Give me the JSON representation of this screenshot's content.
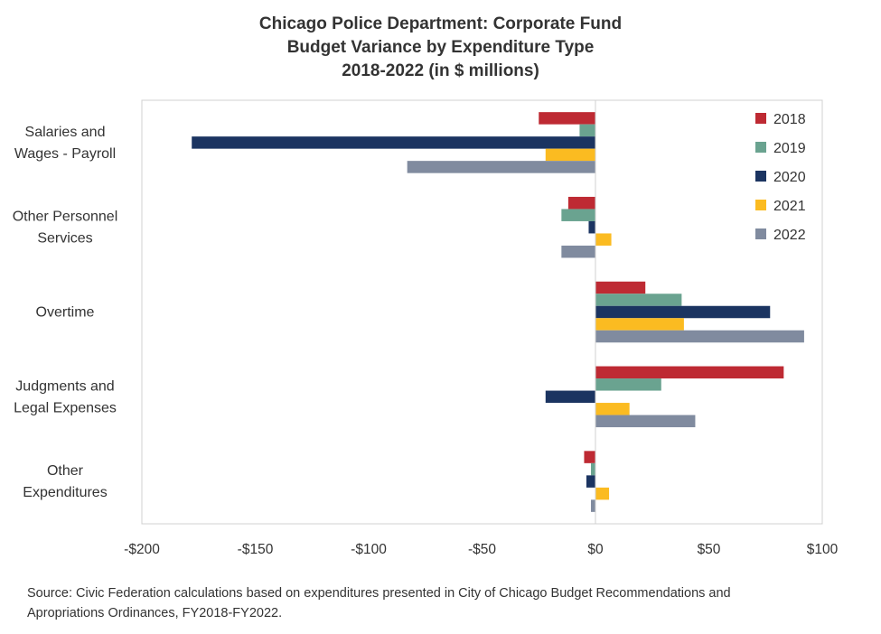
{
  "chart_data": {
    "type": "bar",
    "orientation": "horizontal",
    "title_lines": [
      "Chicago Police Department: Corporate Fund",
      "Budget Variance by Expenditure Type",
      "2018-2022 (in $ millions)"
    ],
    "categories": [
      [
        "Salaries and",
        "Wages - Payroll"
      ],
      [
        "Other Personnel",
        "Services"
      ],
      [
        "Overtime"
      ],
      [
        "Judgments and",
        "Legal Expenses"
      ],
      [
        "Other",
        "Expenditures"
      ]
    ],
    "series": [
      {
        "name": "2018",
        "color": "#be2a33",
        "values": [
          -25,
          -12,
          22,
          83,
          -5
        ]
      },
      {
        "name": "2019",
        "color": "#6aa390",
        "values": [
          -7,
          -15,
          38,
          29,
          -2
        ]
      },
      {
        "name": "2020",
        "color": "#1b3461",
        "values": [
          -178,
          -3,
          77,
          -22,
          -4
        ]
      },
      {
        "name": "2021",
        "color": "#fbbb21",
        "values": [
          -22,
          7,
          39,
          15,
          6
        ]
      },
      {
        "name": "2022",
        "color": "#808b9f",
        "values": [
          -83,
          -15,
          92,
          44,
          -2
        ]
      }
    ],
    "xlim": [
      -200,
      100
    ],
    "x_ticks": [
      -200,
      -150,
      -100,
      -50,
      0,
      50,
      100
    ],
    "x_tick_labels": [
      "-$200",
      "-$150",
      "-$100",
      "-$50",
      "$0",
      "$50",
      "$100"
    ],
    "legend_position": "top-right",
    "grid": false
  },
  "source_lines": [
    "Source: Civic Federation calculations based on expenditures presented in City of Chicago Budget Recommendations and",
    "Apropriations Ordinances, FY2018-FY2022."
  ]
}
